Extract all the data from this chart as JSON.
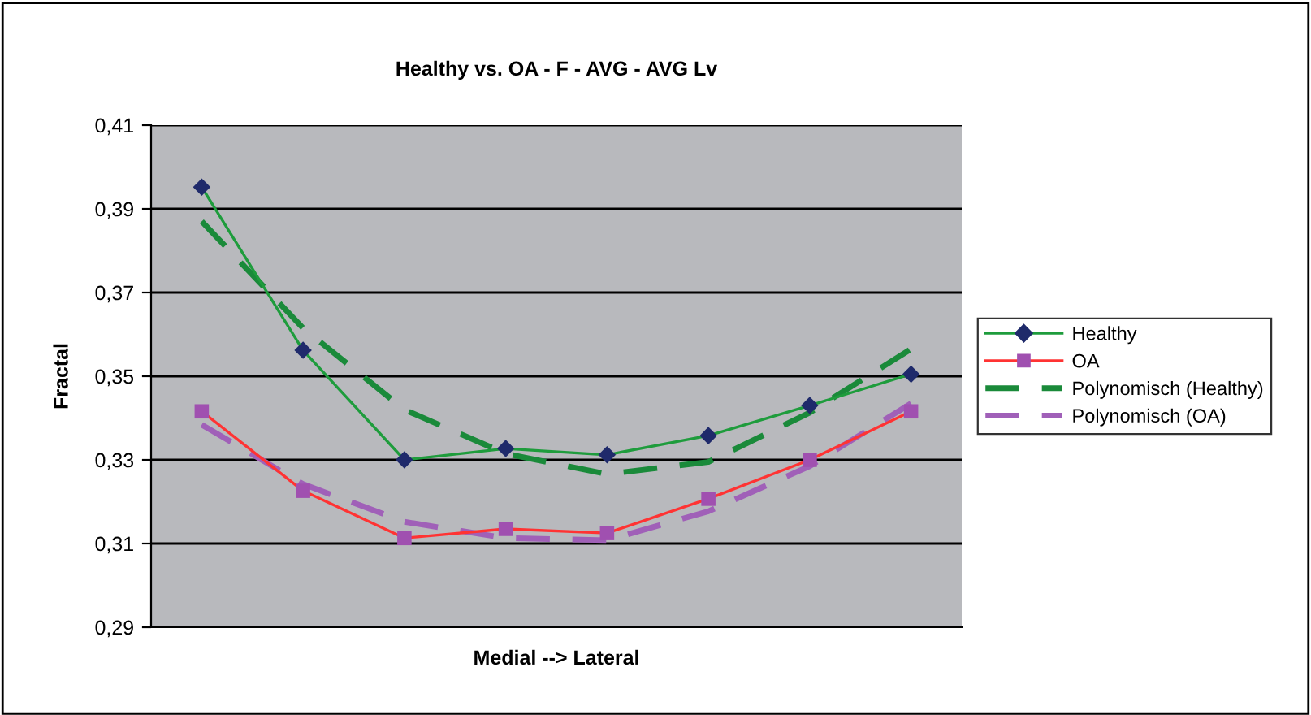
{
  "chart_data": {
    "type": "line",
    "title": "Healthy vs. OA - F - AVG - AVG Lv",
    "xlabel": "Medial --> Lateral",
    "ylabel": "Fractal",
    "categories": [
      null,
      null,
      null,
      null,
      null,
      null,
      null,
      null
    ],
    "series": [
      {
        "name": "Healthy",
        "color": "#1e9c3c",
        "colors": [
          "#1f2a6b",
          "#1f2a6b",
          "#1f2a6b",
          "#1f2a6b",
          "#1f2a6b",
          "#1f2a6b",
          "#1f2a6b",
          "#1f2a6b"
        ],
        "marker": "diamond",
        "line_style": "solid",
        "values": [
          0.3952,
          0.3562,
          0.33,
          0.3327,
          0.3312,
          0.3358,
          0.343,
          0.3505
        ]
      },
      {
        "name": "OA",
        "color": "#ff3333",
        "colors": [
          "#a050b0",
          "#a050b0",
          "#a050b0",
          "#a050b0",
          "#a050b0",
          "#a050b0",
          "#a050b0",
          "#a050b0"
        ],
        "marker": "square",
        "line_style": "solid",
        "values": [
          0.3416,
          0.3226,
          0.3113,
          0.3135,
          0.3125,
          0.3207,
          0.33,
          0.3416
        ]
      },
      {
        "name": "Polynomisch (Healthy)",
        "color": "#1a8a3a",
        "marker": "none",
        "line_style": "dashed",
        "values": [
          0.387,
          0.3615,
          0.342,
          0.3315,
          0.3266,
          0.3295,
          0.3413,
          0.3565
        ]
      },
      {
        "name": "Polynomisch (OA)",
        "color": "#a060b8",
        "marker": "none",
        "line_style": "dashed",
        "values": [
          0.3384,
          0.3242,
          0.3152,
          0.3113,
          0.3108,
          0.3177,
          0.3285,
          0.3435
        ]
      }
    ],
    "ylim": [
      0.29,
      0.41
    ],
    "yticks": [
      {
        "value": 0.29,
        "label": "0,29"
      },
      {
        "value": 0.31,
        "label": "0,31"
      },
      {
        "value": 0.33,
        "label": "0,33"
      },
      {
        "value": 0.35,
        "label": "0,35"
      },
      {
        "value": 0.37,
        "label": "0,37"
      },
      {
        "value": 0.39,
        "label": "0,39"
      },
      {
        "value": 0.41,
        "label": "0,41"
      }
    ],
    "grid": "y",
    "legend": "right",
    "tick_labels": "y"
  }
}
